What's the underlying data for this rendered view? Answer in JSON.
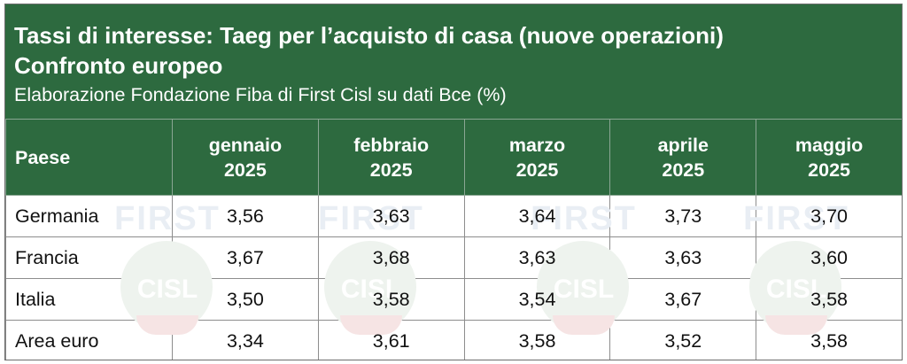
{
  "header": {
    "title_line1": "Tassi di interesse: Taeg per l’acquisto di casa (nuove operazioni)",
    "title_line2": "Confronto europeo",
    "subtitle": "Elaborazione Fondazione Fiba di First Cisl su dati Bce (%)"
  },
  "watermark": {
    "top": "FIRST",
    "logo": "CISL"
  },
  "table": {
    "first_header": "Paese",
    "columns": [
      {
        "month": "gennaio",
        "year": "2025"
      },
      {
        "month": "febbraio",
        "year": "2025"
      },
      {
        "month": "marzo",
        "year": "2025"
      },
      {
        "month": "aprile",
        "year": "2025"
      },
      {
        "month": "maggio",
        "year": "2025"
      }
    ],
    "rows": [
      {
        "country": "Germania",
        "values": [
          "3,56",
          "3,63",
          "3,64",
          "3,73",
          "3,70"
        ]
      },
      {
        "country": "Francia",
        "values": [
          "3,67",
          "3,68",
          "3,63",
          "3,63",
          "3,60"
        ]
      },
      {
        "country": "Italia",
        "values": [
          "3,50",
          "3,58",
          "3,54",
          "3,67",
          "3,58"
        ]
      },
      {
        "country": "Area euro",
        "values": [
          "3,34",
          "3,61",
          "3,58",
          "3,52",
          "3,58"
        ]
      }
    ]
  }
}
